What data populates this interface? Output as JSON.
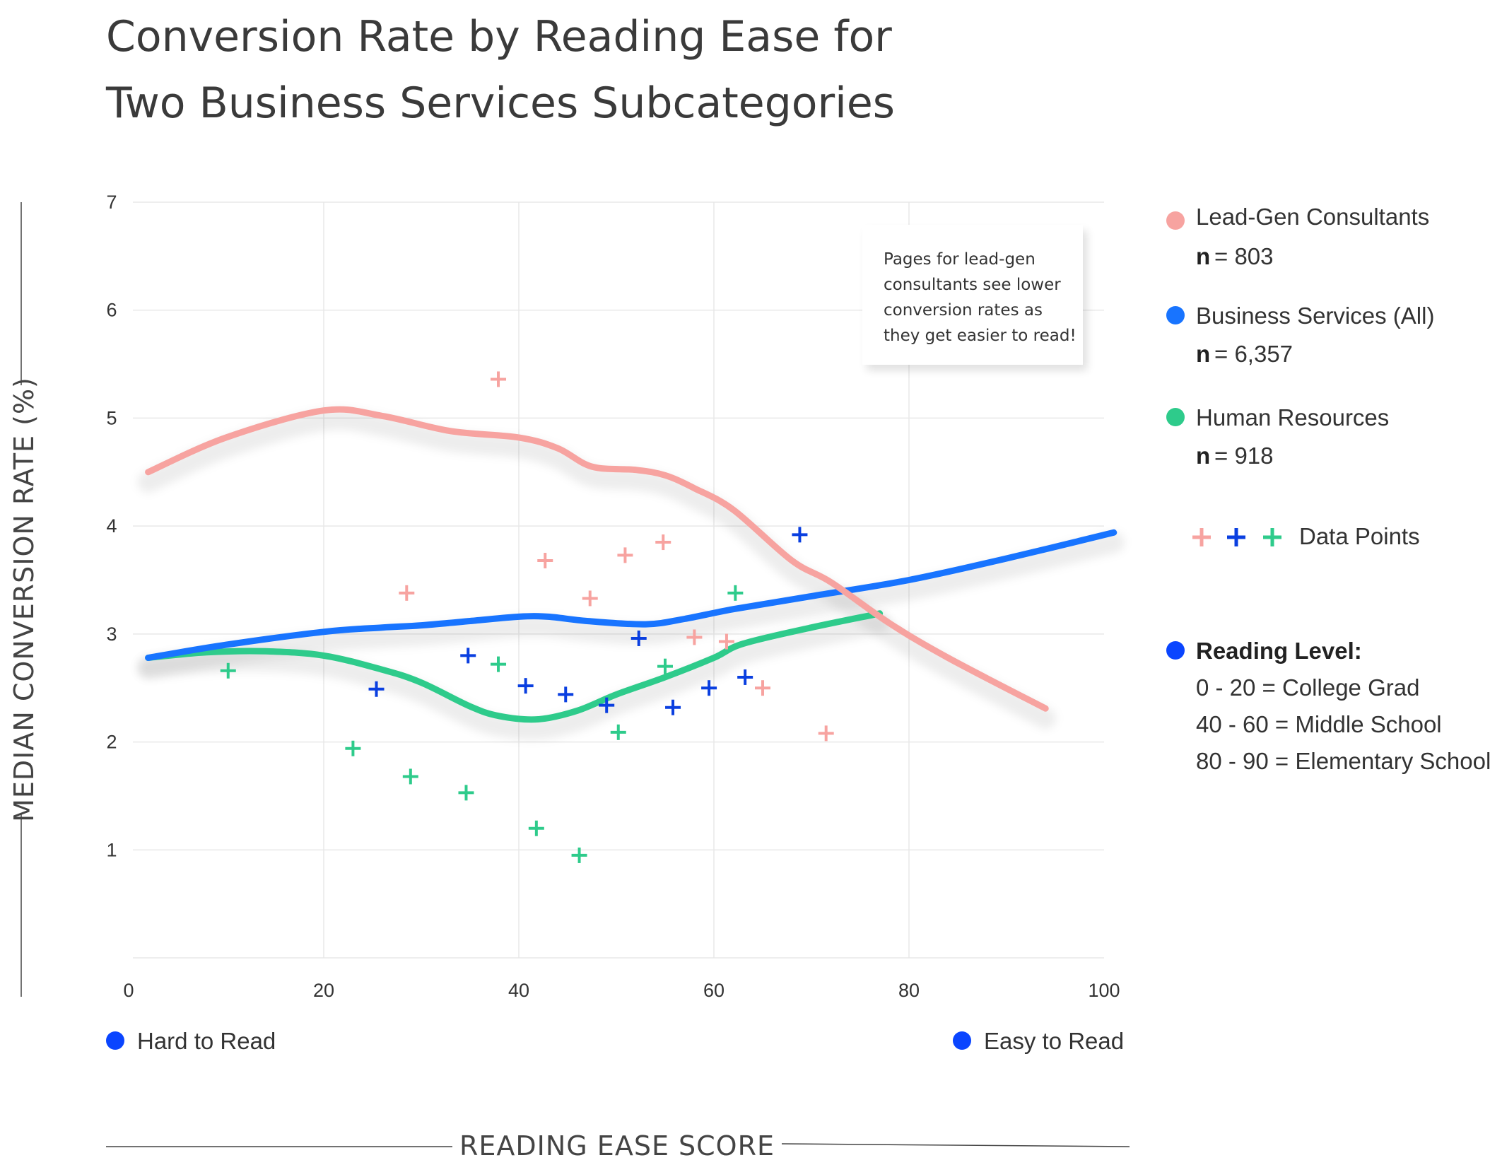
{
  "chart_data": {
    "type": "scatter",
    "title": [
      "Conversion Rate by Reading Ease for",
      "Two Business Services Subcategories"
    ],
    "xlabel": "READING EASE SCORE",
    "ylabel": "MEDIAN CONVERSION RATE (%)",
    "xlim": [
      0,
      100
    ],
    "ylim": [
      0,
      7
    ],
    "x_ticks": [
      "0",
      "20",
      "40",
      "60",
      "80",
      "100"
    ],
    "y_ticks": [
      "1",
      "2",
      "3",
      "4",
      "5",
      "6",
      "7"
    ],
    "grid": true,
    "legend_placement": "right",
    "series": [
      {
        "name": "Lead-Gen Consultants",
        "n_label": "n",
        "n_value": "= 803",
        "color": "#f7a3a0",
        "trend_x": [
          2,
          10,
          20,
          26,
          33,
          40,
          44,
          47.5,
          52,
          55,
          58,
          62,
          68,
          72,
          78,
          84,
          94
        ],
        "trend_y": [
          4.5,
          4.82,
          5.07,
          5.02,
          4.88,
          4.82,
          4.72,
          4.55,
          4.52,
          4.47,
          4.35,
          4.15,
          3.68,
          3.48,
          3.1,
          2.78,
          2.31
        ],
        "points": [
          [
            28.5,
            3.38
          ],
          [
            37.9,
            5.36
          ],
          [
            42.7,
            3.68
          ],
          [
            47.3,
            3.33
          ],
          [
            50.9,
            3.73
          ],
          [
            54.8,
            3.85
          ],
          [
            58.0,
            2.97
          ],
          [
            61.3,
            2.93
          ],
          [
            65.0,
            2.5
          ],
          [
            71.5,
            2.08
          ]
        ]
      },
      {
        "name": "Business Services (All)",
        "n_label": "n",
        "n_value": "= 6,357",
        "color": "#1874ff",
        "trend_x": [
          2,
          10,
          20,
          26,
          30,
          35,
          40,
          43,
          47,
          53,
          57,
          62,
          70,
          80,
          90,
          101
        ],
        "trend_y": [
          2.78,
          2.9,
          3.02,
          3.06,
          3.08,
          3.12,
          3.16,
          3.16,
          3.12,
          3.09,
          3.14,
          3.23,
          3.35,
          3.5,
          3.7,
          3.94
        ],
        "points": [
          [
            25.4,
            2.49
          ],
          [
            34.8,
            2.8
          ],
          [
            40.7,
            2.52
          ],
          [
            44.8,
            2.44
          ],
          [
            49.0,
            2.34
          ],
          [
            52.3,
            2.96
          ],
          [
            55.8,
            2.32
          ],
          [
            59.5,
            2.5
          ],
          [
            63.2,
            2.6
          ],
          [
            68.8,
            3.92
          ]
        ]
      },
      {
        "name": "Human Resources",
        "n_label": "n",
        "n_value": "= 918",
        "color": "#2ecb8b",
        "trend_x": [
          2,
          8,
          14,
          20,
          26,
          30,
          35,
          38,
          42,
          46,
          50,
          55,
          60,
          63,
          70,
          77
        ],
        "trend_y": [
          2.78,
          2.83,
          2.84,
          2.8,
          2.67,
          2.55,
          2.33,
          2.24,
          2.21,
          2.29,
          2.44,
          2.6,
          2.78,
          2.91,
          3.06,
          3.19
        ],
        "points": [
          [
            10.2,
            2.66
          ],
          [
            23.0,
            1.94
          ],
          [
            28.9,
            1.68
          ],
          [
            34.6,
            1.53
          ],
          [
            37.9,
            2.72
          ],
          [
            41.8,
            1.2
          ],
          [
            46.2,
            0.95
          ],
          [
            50.2,
            2.09
          ],
          [
            55.0,
            2.7
          ],
          [
            62.2,
            3.38
          ]
        ]
      }
    ],
    "annotation": [
      "Pages for lead-gen",
      "consultants see lower",
      "conversion rates as",
      "they get easier to read!"
    ]
  },
  "legend": {
    "data_points_label": "Data Points",
    "reading_level_title": "Reading Level:",
    "reading_levels": [
      "0 - 20 = College Grad",
      "40 - 60 = Middle School",
      "80 - 90 = Elementary School"
    ]
  },
  "ease": {
    "hard_label": "Hard to Read",
    "easy_label": "Easy to Read"
  },
  "colors": {
    "marker_dot": "#0a45ff",
    "grid": "#e8e8e8",
    "text": "#333333"
  }
}
